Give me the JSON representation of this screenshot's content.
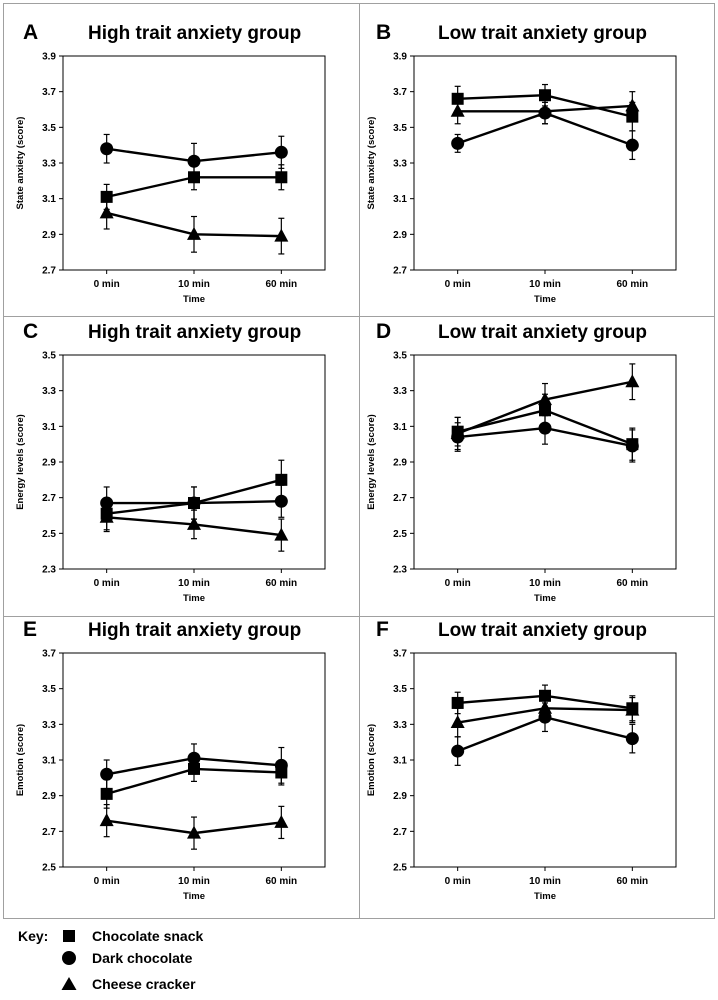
{
  "chart_data": [
    {
      "panel": "A",
      "type": "line",
      "title": "High trait anxiety group",
      "xlabel": "Time",
      "ylabel": "State anxiety (score)",
      "categories": [
        "0 min",
        "10 min",
        "60 min"
      ],
      "ylim": [
        2.7,
        3.9
      ],
      "yticks": [
        "2.7",
        "2.9",
        "3.1",
        "3.3",
        "3.5",
        "3.7",
        "3.9"
      ],
      "series": [
        {
          "name": "Chocolate snack",
          "marker": "square",
          "values": [
            3.11,
            3.22,
            3.22
          ],
          "errors": [
            0.07,
            0.07,
            0.07
          ]
        },
        {
          "name": "Dark chocolate",
          "marker": "circle",
          "values": [
            3.38,
            3.31,
            3.36
          ],
          "errors": [
            0.08,
            0.1,
            0.09
          ]
        },
        {
          "name": "Cheese cracker",
          "marker": "triangle",
          "values": [
            3.02,
            2.9,
            2.89
          ],
          "errors": [
            0.09,
            0.1,
            0.1
          ]
        }
      ]
    },
    {
      "panel": "B",
      "type": "line",
      "title": "Low trait anxiety group",
      "xlabel": "Time",
      "ylabel": "State anxiety (score)",
      "categories": [
        "0 min",
        "10 min",
        "60 min"
      ],
      "ylim": [
        2.7,
        3.9
      ],
      "yticks": [
        "2.7",
        "2.9",
        "3.1",
        "3.3",
        "3.5",
        "3.7",
        "3.9"
      ],
      "series": [
        {
          "name": "Chocolate snack",
          "marker": "square",
          "values": [
            3.66,
            3.68,
            3.56
          ],
          "errors": [
            0.07,
            0.06,
            0.08
          ]
        },
        {
          "name": "Dark chocolate",
          "marker": "circle",
          "values": [
            3.41,
            3.58,
            3.4
          ],
          "errors": [
            0.05,
            0.06,
            0.08
          ]
        },
        {
          "name": "Cheese cracker",
          "marker": "triangle",
          "values": [
            3.59,
            3.59,
            3.62
          ],
          "errors": [
            0.07,
            0.07,
            0.08
          ]
        }
      ]
    },
    {
      "panel": "C",
      "type": "line",
      "title": "High trait anxiety group",
      "xlabel": "Time",
      "ylabel": "Energy levels (score)",
      "categories": [
        "0 min",
        "10 min",
        "60 min"
      ],
      "ylim": [
        2.3,
        3.5
      ],
      "yticks": [
        "2.3",
        "2.5",
        "2.7",
        "2.9",
        "3.1",
        "3.3",
        "3.5"
      ],
      "series": [
        {
          "name": "Chocolate snack",
          "marker": "square",
          "values": [
            2.61,
            2.67,
            2.8
          ],
          "errors": [
            0.09,
            0.09,
            0.11
          ]
        },
        {
          "name": "Dark chocolate",
          "marker": "circle",
          "values": [
            2.67,
            2.67,
            2.68
          ],
          "errors": [
            0.09,
            0.09,
            0.09
          ]
        },
        {
          "name": "Cheese cracker",
          "marker": "triangle",
          "values": [
            2.59,
            2.55,
            2.49
          ],
          "errors": [
            0.08,
            0.08,
            0.09
          ]
        }
      ]
    },
    {
      "panel": "D",
      "type": "line",
      "title": "Low trait anxiety group",
      "xlabel": "Time",
      "ylabel": "Energy levels (score)",
      "categories": [
        "0 min",
        "10 min",
        "60 min"
      ],
      "ylim": [
        2.3,
        3.5
      ],
      "yticks": [
        "2.3",
        "2.5",
        "2.7",
        "2.9",
        "3.1",
        "3.3",
        "3.5"
      ],
      "series": [
        {
          "name": "Chocolate snack",
          "marker": "square",
          "values": [
            3.07,
            3.19,
            3.0
          ],
          "errors": [
            0.08,
            0.09,
            0.09
          ]
        },
        {
          "name": "Dark chocolate",
          "marker": "circle",
          "values": [
            3.04,
            3.09,
            2.99
          ],
          "errors": [
            0.08,
            0.09,
            0.09
          ]
        },
        {
          "name": "Cheese cracker",
          "marker": "triangle",
          "values": [
            3.06,
            3.25,
            3.35
          ],
          "errors": [
            0.09,
            0.09,
            0.1
          ]
        }
      ]
    },
    {
      "panel": "E",
      "type": "line",
      "title": "High trait anxiety group",
      "xlabel": "Time",
      "ylabel": "Emotion (score)",
      "categories": [
        "0 min",
        "10 min",
        "60 min"
      ],
      "ylim": [
        2.5,
        3.7
      ],
      "yticks": [
        "2.5",
        "2.7",
        "2.9",
        "3.1",
        "3.3",
        "3.5",
        "3.7"
      ],
      "series": [
        {
          "name": "Chocolate snack",
          "marker": "square",
          "values": [
            2.91,
            3.05,
            3.03
          ],
          "errors": [
            0.08,
            0.07,
            0.07
          ]
        },
        {
          "name": "Dark chocolate",
          "marker": "circle",
          "values": [
            3.02,
            3.11,
            3.07
          ],
          "errors": [
            0.08,
            0.08,
            0.1
          ]
        },
        {
          "name": "Cheese cracker",
          "marker": "triangle",
          "values": [
            2.76,
            2.69,
            2.75
          ],
          "errors": [
            0.09,
            0.09,
            0.09
          ]
        }
      ]
    },
    {
      "panel": "F",
      "type": "line",
      "title": "Low trait anxiety group",
      "xlabel": "Time",
      "ylabel": "Emotion (score)",
      "categories": [
        "0 min",
        "10 min",
        "60 min"
      ],
      "ylim": [
        2.5,
        3.7
      ],
      "yticks": [
        "2.5",
        "2.7",
        "2.9",
        "3.1",
        "3.3",
        "3.5",
        "3.7"
      ],
      "series": [
        {
          "name": "Chocolate snack",
          "marker": "square",
          "values": [
            3.42,
            3.46,
            3.39
          ],
          "errors": [
            0.06,
            0.06,
            0.07
          ]
        },
        {
          "name": "Dark chocolate",
          "marker": "circle",
          "values": [
            3.15,
            3.34,
            3.22
          ],
          "errors": [
            0.08,
            0.08,
            0.08
          ]
        },
        {
          "name": "Cheese cracker",
          "marker": "triangle",
          "values": [
            3.31,
            3.39,
            3.38
          ],
          "errors": [
            0.08,
            0.07,
            0.07
          ]
        }
      ]
    }
  ],
  "key": {
    "label": "Key:",
    "items": [
      {
        "marker": "square",
        "label": "Chocolate snack"
      },
      {
        "marker": "circle",
        "label": "Dark chocolate"
      },
      {
        "marker": "triangle",
        "label": "Cheese cracker"
      }
    ]
  },
  "colors": {
    "ink": "#000000",
    "frame": "#a0a0a0",
    "background": "#ffffff"
  }
}
